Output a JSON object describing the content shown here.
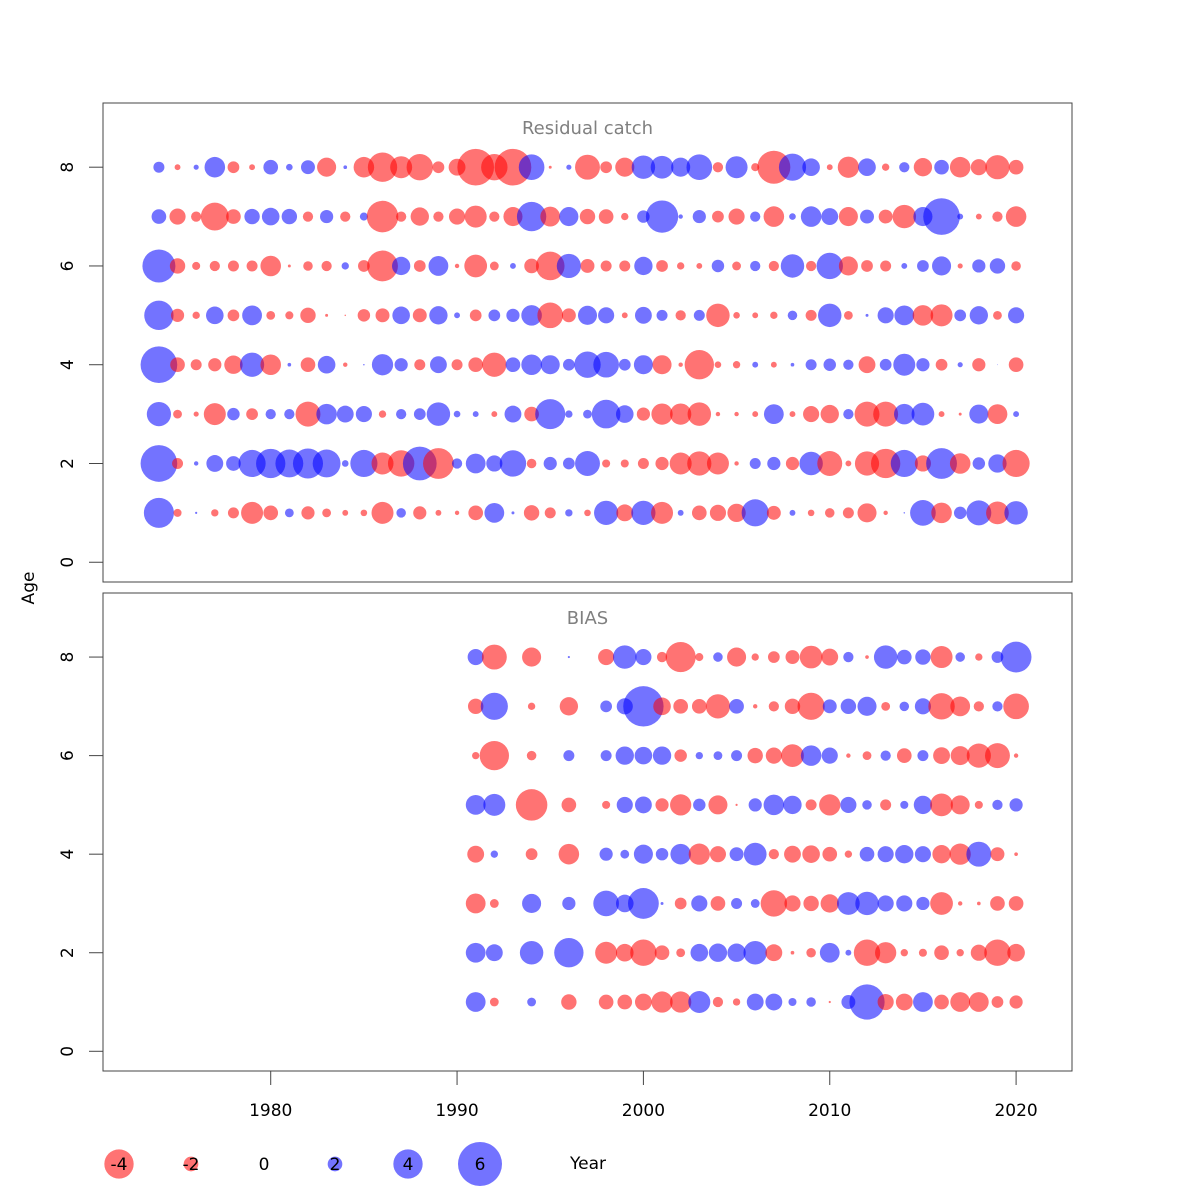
{
  "chart_data": {
    "type": "scatter",
    "subtype": "bubble",
    "ylabel": "Age",
    "xlabel": "Year",
    "x_ticks": [
      1980,
      1990,
      2000,
      2010,
      2020
    ],
    "y_ticks": [
      0,
      2,
      4,
      6,
      8
    ],
    "xlim": [
      1971,
      2023
    ],
    "ylim": [
      -0.4,
      9.3
    ],
    "colors": {
      "positive": "#0000ff",
      "negative": "#ff0000",
      "alpha": 0.55
    },
    "legend": {
      "placement": "bottom",
      "values": [
        -4,
        -2,
        0,
        2,
        4,
        6
      ],
      "labels": [
        "-4",
        "-2",
        "0",
        "2",
        "4",
        "6"
      ]
    },
    "panels": [
      {
        "title": "Residual catch",
        "years": [
          1974,
          1975,
          1976,
          1977,
          1978,
          1979,
          1980,
          1981,
          1982,
          1983,
          1984,
          1985,
          1986,
          1987,
          1988,
          1989,
          1990,
          1991,
          1992,
          1993,
          1994,
          1995,
          1996,
          1997,
          1998,
          1999,
          2000,
          2001,
          2002,
          2003,
          2004,
          2005,
          2006,
          2007,
          2008,
          2009,
          2010,
          2011,
          2012,
          2013,
          2014,
          2015,
          2016,
          2017,
          2018,
          2019,
          2020
        ],
        "ages": [
          1,
          2,
          3,
          4,
          5,
          6,
          7,
          8
        ],
        "residuals": [
          [
            4.1,
            -1.1,
            0.3,
            -1.0,
            -1.5,
            -3.0,
            -2.0,
            1.2,
            -1.8,
            -1.2,
            -0.8,
            -0.9,
            -3.0,
            1.3,
            -1.8,
            -0.8,
            -0.6,
            -2.0,
            2.7,
            0.4,
            -2.1,
            -1.5,
            1.0,
            -0.9,
            3.3,
            -2.3,
            3.3,
            -3.0,
            0.8,
            -2.0,
            -2.2,
            -2.5,
            3.7,
            -1.9,
            0.8,
            -0.9,
            -1.3,
            -1.5,
            -2.6,
            -0.6,
            0.2,
            3.5,
            -2.8,
            1.7,
            3.4,
            -3.1,
            3.2
          ],
          [
            5.0,
            -1.5,
            0.6,
            2.3,
            2.0,
            3.7,
            4.0,
            3.8,
            4.1,
            3.8,
            0.9,
            3.7,
            -3.0,
            -3.6,
            4.6,
            -4.2,
            1.4,
            2.7,
            2.2,
            3.6,
            -1.3,
            1.8,
            1.6,
            3.4,
            -1.1,
            -1.1,
            -1.5,
            -1.8,
            -3.0,
            -3.3,
            -3.0,
            -0.6,
            1.5,
            1.8,
            -1.8,
            3.2,
            -3.4,
            -0.8,
            -3.3,
            -4.0,
            3.7,
            -2.2,
            4.2,
            -2.8,
            1.7,
            2.5,
            -3.7
          ],
          [
            3.3,
            -1.2,
            -0.7,
            -3.0,
            1.7,
            -1.6,
            1.4,
            1.4,
            -3.4,
            2.8,
            2.3,
            2.2,
            -1.0,
            1.4,
            1.6,
            3.2,
            0.9,
            0.8,
            -0.8,
            2.3,
            -2.0,
            4.1,
            1.0,
            1.2,
            3.9,
            2.4,
            -1.8,
            -2.9,
            -2.9,
            -3.2,
            -0.6,
            -0.6,
            -0.8,
            2.7,
            -0.8,
            -2.2,
            -2.5,
            1.4,
            -3.4,
            -3.4,
            2.8,
            3.1,
            -0.8,
            -0.4,
            2.6,
            -2.7,
            0.8
          ],
          [
            5.0,
            -2.0,
            -1.5,
            -1.8,
            -2.5,
            3.3,
            -2.8,
            0.5,
            -2.0,
            2.4,
            -0.6,
            0.2,
            2.9,
            1.8,
            -1.5,
            2.3,
            -1.5,
            -2.0,
            -3.3,
            2.0,
            2.8,
            2.6,
            1.6,
            3.6,
            3.5,
            1.6,
            2.6,
            -2.6,
            -0.6,
            -4.0,
            -0.9,
            -1.0,
            0.8,
            -0.8,
            0.5,
            1.5,
            1.7,
            1.4,
            -2.3,
            1.6,
            3.0,
            1.8,
            -1.6,
            0.7,
            -1.8,
            0.1,
            -2.0
          ],
          [
            4.0,
            -1.8,
            -1.0,
            2.4,
            -1.6,
            2.7,
            -1.2,
            -1.1,
            -2.1,
            -0.4,
            -0.2,
            -1.7,
            -1.9,
            2.4,
            -1.9,
            2.5,
            0.8,
            -1.6,
            1.6,
            1.8,
            2.8,
            -3.5,
            -1.9,
            2.6,
            2.2,
            -0.8,
            2.3,
            1.5,
            -1.4,
            1.5,
            -3.2,
            -0.9,
            -0.8,
            -1.0,
            1.3,
            -1.5,
            3.2,
            -1.2,
            0.4,
            2.2,
            2.7,
            -2.8,
            -3.0,
            1.6,
            2.5,
            -1.2,
            2.2
          ],
          [
            4.5,
            -2.1,
            -1.1,
            -1.4,
            -1.5,
            -1.5,
            -2.8,
            -0.4,
            -1.3,
            -1.4,
            1.0,
            -1.6,
            -4.2,
            2.5,
            -1.6,
            2.7,
            -0.6,
            -3.1,
            -1.2,
            0.8,
            -2.0,
            -3.9,
            3.3,
            -1.9,
            -1.5,
            -1.5,
            2.5,
            -1.6,
            -1.0,
            -0.8,
            1.7,
            -1.2,
            1.4,
            -1.4,
            3.2,
            -1.4,
            3.6,
            -2.6,
            -1.6,
            -1.5,
            0.8,
            1.6,
            2.6,
            -0.7,
            1.8,
            2.1,
            -1.3
          ],
          [
            2.0,
            -2.2,
            -1.4,
            -3.8,
            -2.0,
            2.1,
            2.4,
            2.1,
            -1.4,
            1.8,
            -1.4,
            1.1,
            -4.3,
            -1.4,
            -2.5,
            -1.4,
            -2.2,
            -3.0,
            -1.4,
            -2.6,
            4.0,
            -2.7,
            2.6,
            -2.1,
            -2.0,
            -1.0,
            1.7,
            4.4,
            0.6,
            1.8,
            -1.6,
            -2.2,
            1.4,
            -2.8,
            0.9,
            2.8,
            2.3,
            -2.6,
            1.9,
            -1.9,
            -3.2,
            2.6,
            5.0,
            0.8,
            -0.8,
            -1.4,
            -2.8
          ],
          [
            1.5,
            -0.8,
            0.7,
            2.8,
            -1.6,
            -0.8,
            2.0,
            0.9,
            1.9,
            -2.6,
            0.5,
            -2.8,
            -4.0,
            -3.0,
            -3.6,
            -1.6,
            -2.3,
            -5.0,
            -3.6,
            -5.0,
            3.5,
            -0.4,
            0.7,
            -3.4,
            -1.6,
            -2.6,
            3.2,
            3.1,
            2.6,
            3.5,
            -1.4,
            3.0,
            -1.1,
            -4.5,
            3.7,
            2.4,
            -0.8,
            -2.9,
            2.4,
            -1.0,
            1.4,
            -2.5,
            2.0,
            -2.8,
            -2.2,
            -3.3,
            -2.0
          ]
        ]
      },
      {
        "title": "BIAS",
        "years": [
          1991,
          1992,
          1993,
          1994,
          1995,
          1996,
          1997,
          1998,
          1999,
          2000,
          2001,
          2002,
          2003,
          2004,
          2005,
          2006,
          2007,
          2008,
          2009,
          2010,
          2011,
          2012,
          2013,
          2014,
          2015,
          2016,
          2017,
          2018,
          2019,
          2020
        ],
        "ages": [
          1,
          2,
          3,
          4,
          5,
          6,
          7,
          8
        ],
        "residuals": [
          [
            2.7,
            -1.2,
            null,
            1.2,
            null,
            -2.1,
            null,
            -2.0,
            -2.0,
            -2.3,
            -2.9,
            -2.9,
            3.0,
            -1.4,
            -1.0,
            2.3,
            2.3,
            1.1,
            1.3,
            -0.3,
            1.9,
            4.8,
            -2.2,
            -2.3,
            2.7,
            -2.0,
            -2.7,
            -2.7,
            -1.6,
            -1.8
          ],
          [
            2.7,
            2.3,
            null,
            3.2,
            null,
            4.0,
            null,
            -3.0,
            -2.4,
            -3.6,
            -2.0,
            -1.2,
            2.4,
            2.5,
            2.5,
            3.2,
            -2.3,
            -0.5,
            -1.3,
            2.7,
            0.8,
            -3.6,
            -2.9,
            -1.0,
            -1.1,
            -2.0,
            -1.0,
            -2.2,
            -3.6,
            -2.4
          ],
          [
            -2.7,
            -1.2,
            null,
            2.6,
            null,
            1.8,
            null,
            3.5,
            2.4,
            4.2,
            0.4,
            -1.6,
            2.2,
            -2.0,
            1.5,
            1.2,
            -3.6,
            -2.2,
            -2.1,
            -2.5,
            3.1,
            3.2,
            2.2,
            2.2,
            1.8,
            -3.1,
            -0.6,
            -0.5,
            -2.0,
            -2.0
          ],
          [
            -2.3,
            1.0,
            null,
            -1.6,
            null,
            -2.8,
            null,
            1.8,
            1.2,
            2.6,
            1.7,
            2.8,
            -2.9,
            -2.2,
            1.9,
            3.1,
            -1.4,
            -2.3,
            -2.4,
            -2.0,
            -1.0,
            2.0,
            2.2,
            2.5,
            2.2,
            -2.5,
            -2.9,
            3.4,
            -1.9,
            -0.5
          ],
          [
            2.7,
            3.0,
            null,
            -4.3,
            null,
            -2.0,
            null,
            -1.1,
            2.2,
            2.3,
            -1.8,
            -2.9,
            1.7,
            -2.6,
            -0.3,
            1.8,
            2.8,
            2.5,
            -1.5,
            -2.9,
            2.2,
            1.3,
            -1.5,
            1.1,
            2.5,
            -3.1,
            -2.6,
            -1.1,
            1.4,
            1.8
          ],
          [
            -1.0,
            -4.0,
            null,
            -1.3,
            null,
            1.5,
            null,
            1.5,
            2.5,
            2.4,
            2.5,
            -1.7,
            1.0,
            1.2,
            1.5,
            -2.1,
            -2.2,
            -3.1,
            2.8,
            2.2,
            -0.6,
            -1.2,
            1.4,
            -2.0,
            1.5,
            -2.3,
            -2.6,
            -3.3,
            -3.4,
            -0.6
          ],
          [
            -2.1,
            3.7,
            null,
            -1.0,
            null,
            -2.5,
            null,
            1.6,
            2.2,
            5.5,
            -2.4,
            -2.0,
            -2.0,
            -3.3,
            2.0,
            -0.6,
            -1.4,
            -2.1,
            -3.7,
            1.9,
            2.1,
            2.6,
            -1.2,
            1.3,
            2.2,
            -3.6,
            -2.7,
            -1.4,
            1.4,
            -3.5
          ],
          [
            2.2,
            -3.4,
            null,
            -2.6,
            null,
            0.3,
            null,
            -2.2,
            3.2,
            2.2,
            -1.4,
            -4.1,
            -1.1,
            1.3,
            -2.6,
            -1.0,
            -1.6,
            -1.9,
            -3.1,
            -2.3,
            1.4,
            -0.5,
            3.2,
            2.0,
            2.1,
            -3.0,
            1.3,
            -1.0,
            1.6,
            4.2
          ]
        ]
      }
    ]
  }
}
